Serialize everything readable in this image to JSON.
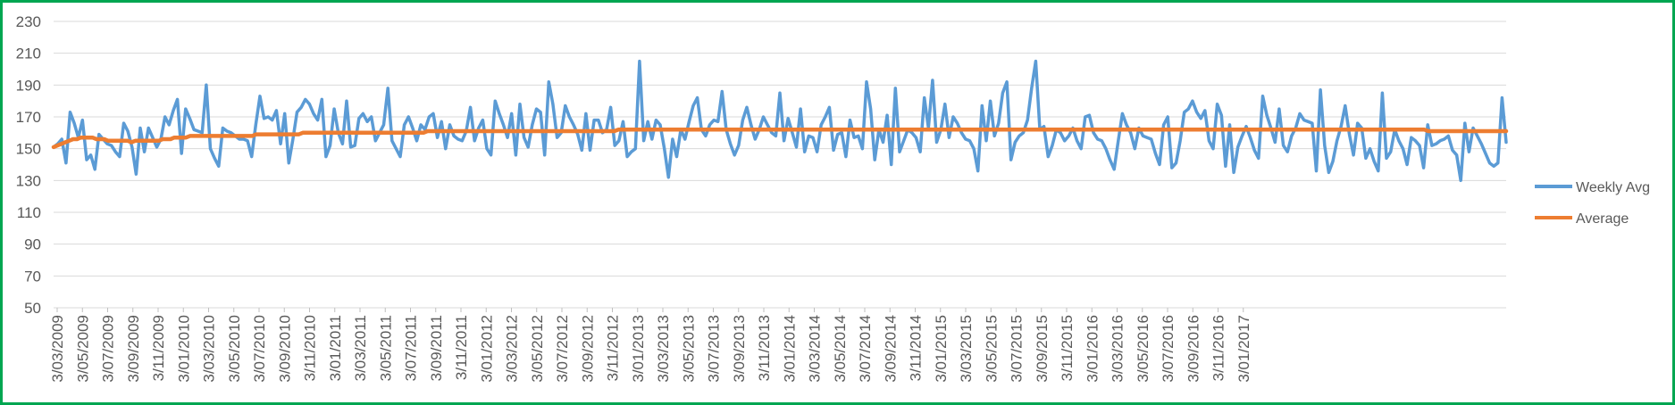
{
  "chart_data": {
    "type": "line",
    "title": "",
    "xlabel": "",
    "ylabel": "",
    "ylim": [
      50,
      230
    ],
    "yticks": [
      50,
      70,
      90,
      110,
      130,
      150,
      170,
      190,
      210,
      230
    ],
    "grid": true,
    "legend_position": "right",
    "colors": {
      "Weekly Avg": "#5b9bd5",
      "Average": "#ed7d31",
      "border": "#00a651",
      "grid": "#d9d9d9"
    },
    "x_tick_labels": [
      "3/03/2009",
      "3/05/2009",
      "3/07/2009",
      "3/09/2009",
      "3/11/2009",
      "3/01/2010",
      "3/03/2010",
      "3/05/2010",
      "3/07/2010",
      "3/09/2010",
      "3/11/2010",
      "3/01/2011",
      "3/03/2011",
      "3/05/2011",
      "3/07/2011",
      "3/09/2011",
      "3/11/2011",
      "3/01/2012",
      "3/03/2012",
      "3/05/2012",
      "3/07/2012",
      "3/09/2012",
      "3/11/2012",
      "3/01/2013",
      "3/03/2013",
      "3/05/2013",
      "3/07/2013",
      "3/09/2013",
      "3/11/2013",
      "3/01/2014",
      "3/03/2014",
      "3/05/2014",
      "3/07/2014",
      "3/09/2014",
      "3/11/2014",
      "3/01/2015",
      "3/03/2015",
      "3/05/2015",
      "3/07/2015",
      "3/09/2015",
      "3/11/2015",
      "3/01/2016",
      "3/03/2016",
      "3/05/2016",
      "3/07/2016",
      "3/09/2016",
      "3/11/2016",
      "3/01/2017"
    ],
    "x_start": "3/03/2009",
    "x_end": "10/02/2017",
    "series": [
      {
        "name": "Weekly Avg",
        "values": [
          151,
          153,
          156,
          141,
          173,
          166,
          157,
          168,
          143,
          146,
          137,
          159,
          156,
          153,
          152,
          148,
          145,
          166,
          161,
          151,
          134,
          163,
          148,
          163,
          157,
          151,
          156,
          170,
          165,
          174,
          181,
          147,
          175,
          169,
          162,
          161,
          160,
          190,
          150,
          144,
          139,
          163,
          161,
          160,
          158,
          156,
          156,
          155,
          145,
          165,
          183,
          169,
          170,
          168,
          174,
          153,
          172,
          141,
          156,
          173,
          176,
          181,
          178,
          172,
          168,
          181,
          145,
          152,
          175,
          160,
          153,
          180,
          151,
          152,
          169,
          172,
          167,
          170,
          155,
          160,
          165,
          188,
          155,
          150,
          145,
          165,
          170,
          163,
          155,
          165,
          162,
          170,
          172,
          157,
          167,
          150,
          165,
          158,
          156,
          155,
          161,
          176,
          155,
          163,
          168,
          150,
          146,
          180,
          172,
          165,
          157,
          172,
          146,
          178,
          157,
          151,
          165,
          175,
          173,
          146,
          192,
          178,
          157,
          160,
          177,
          170,
          165,
          159,
          149,
          172,
          149,
          168,
          168,
          160,
          162,
          176,
          152,
          155,
          167,
          145,
          148,
          150,
          205,
          155,
          167,
          156,
          168,
          165,
          150,
          132,
          156,
          145,
          162,
          156,
          167,
          177,
          182,
          162,
          158,
          165,
          168,
          167,
          186,
          162,
          153,
          146,
          152,
          168,
          176,
          165,
          156,
          162,
          170,
          165,
          160,
          158,
          185,
          155,
          169,
          160,
          151,
          175,
          148,
          158,
          157,
          148,
          165,
          170,
          176,
          149,
          159,
          160,
          145,
          168,
          157,
          158,
          150,
          192,
          175,
          143,
          162,
          154,
          171,
          140,
          188,
          148,
          155,
          162,
          160,
          157,
          148,
          182,
          163,
          193,
          154,
          162,
          178,
          157,
          170,
          166,
          160,
          156,
          155,
          150,
          136,
          177,
          155,
          180,
          158,
          166,
          185,
          192,
          143,
          154,
          158,
          160,
          168,
          188,
          205,
          162,
          164,
          145,
          152,
          162,
          160,
          155,
          158,
          163,
          155,
          150,
          170,
          171,
          160,
          156,
          155,
          150,
          143,
          137,
          155,
          172,
          165,
          160,
          150,
          163,
          158,
          157,
          156,
          147,
          140,
          165,
          170,
          138,
          141,
          155,
          173,
          175,
          180,
          173,
          169,
          174,
          155,
          150,
          178,
          171,
          139,
          165,
          135,
          151,
          158,
          164,
          157,
          149,
          144,
          183,
          171,
          163,
          154,
          175,
          152,
          148,
          158,
          163,
          172,
          168,
          167,
          166,
          136,
          187,
          152,
          135,
          142,
          155,
          164,
          177,
          159,
          146,
          166,
          163,
          144,
          150,
          142,
          136,
          185,
          144,
          148,
          162,
          155,
          150,
          140,
          157,
          155,
          152,
          138,
          165,
          152,
          153,
          155,
          156,
          158,
          149,
          146,
          130,
          166,
          148,
          163,
          158,
          153,
          147,
          141,
          139,
          141,
          182,
          154
        ]
      },
      {
        "name": "Average",
        "values": [
          151,
          152,
          153,
          154,
          155,
          156,
          156,
          157,
          157,
          157,
          157,
          156,
          156,
          156,
          155,
          155,
          155,
          155,
          155,
          155,
          154,
          155,
          155,
          155,
          155,
          155,
          155,
          155,
          156,
          156,
          156,
          157,
          157,
          157,
          157,
          158,
          158,
          158,
          158,
          158,
          158,
          158,
          158,
          158,
          158,
          158,
          158,
          158,
          158,
          158,
          158,
          158,
          159,
          159,
          159,
          159,
          159,
          159,
          159,
          159,
          159,
          159,
          159,
          159,
          160,
          160,
          160,
          160,
          160,
          160,
          160,
          160,
          160,
          160,
          160,
          160,
          160,
          160,
          160,
          160,
          160,
          160,
          160,
          160,
          160,
          160,
          160,
          160,
          160,
          160,
          160,
          160,
          160,
          160,
          160,
          160,
          161,
          161,
          161,
          161,
          161,
          161,
          161,
          161,
          161,
          161,
          161,
          161,
          161,
          161,
          161,
          161,
          161,
          161,
          161,
          161,
          161,
          161,
          161,
          161,
          161,
          161,
          161,
          161,
          161,
          161,
          161,
          161,
          161,
          161,
          161,
          161,
          161,
          161,
          161,
          161,
          161,
          161,
          161,
          161,
          161,
          161,
          161,
          161,
          161,
          162,
          162,
          162,
          162,
          162,
          162,
          162,
          162,
          162,
          162,
          162,
          162,
          162,
          162,
          162,
          162,
          162,
          162,
          162,
          162,
          162,
          162,
          162,
          162,
          162,
          162,
          162,
          162,
          162,
          162,
          162,
          162,
          162,
          162,
          162,
          162,
          162,
          162,
          162,
          162,
          162,
          162,
          162,
          162,
          162,
          162,
          162,
          162,
          162,
          162,
          162,
          162,
          162,
          162,
          162,
          162,
          162,
          162,
          162,
          162,
          162,
          162,
          162,
          162,
          162,
          162,
          162,
          162,
          162,
          162,
          162,
          162,
          162,
          162,
          162,
          162,
          162,
          162,
          162,
          162,
          162,
          162,
          162,
          162,
          162,
          162,
          162,
          162,
          162,
          162,
          162,
          162,
          162,
          162,
          162,
          162,
          162,
          162,
          162,
          162,
          162,
          162,
          162,
          162,
          162,
          162,
          162,
          162,
          162,
          162,
          162,
          162,
          162,
          162,
          162,
          162,
          162,
          162,
          162,
          162,
          162,
          162,
          162,
          162,
          162,
          162,
          162,
          162,
          162,
          162,
          162,
          162,
          162,
          162,
          162,
          162,
          162,
          162,
          162,
          162,
          162,
          162,
          162,
          162,
          162,
          162,
          162,
          162,
          162,
          162,
          162,
          162,
          162,
          162,
          162,
          162,
          162,
          162,
          162,
          162,
          162,
          162,
          162,
          162,
          162,
          162,
          162,
          162,
          162,
          162,
          162,
          162,
          162,
          162,
          162,
          162,
          162,
          162,
          162,
          162,
          162,
          162,
          162,
          162,
          162,
          162,
          162,
          162,
          162,
          162,
          162,
          162,
          162,
          162,
          162,
          162,
          162,
          162,
          162,
          162,
          162,
          162,
          162,
          162,
          162,
          162,
          162,
          162,
          161,
          161,
          161,
          161,
          161,
          161,
          161,
          161,
          161,
          161,
          161,
          161,
          161,
          161,
          161,
          161,
          161,
          161,
          161,
          161,
          161
        ]
      }
    ]
  }
}
